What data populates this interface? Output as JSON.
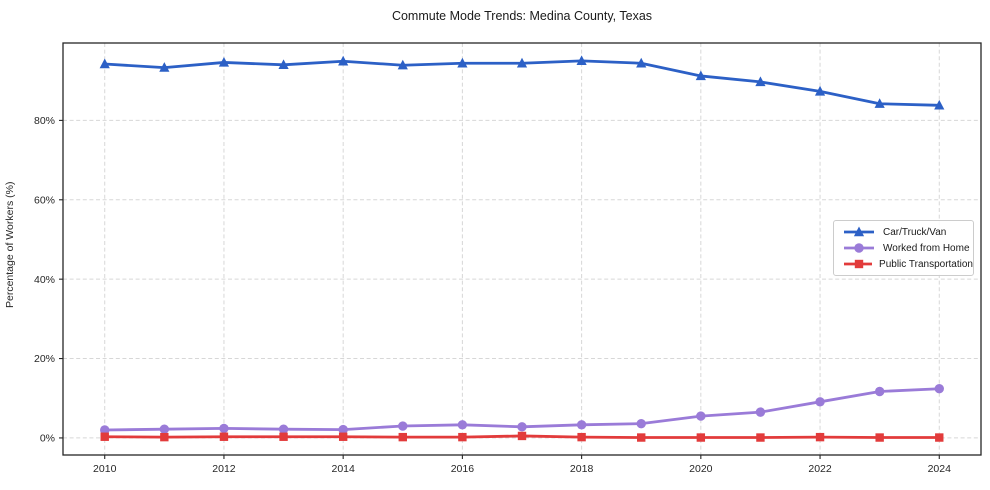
{
  "chart_data": {
    "type": "line",
    "title": "Commute Mode Trends: Medina County, Texas",
    "xlabel": "",
    "ylabel": "Percentage of Workers (%)",
    "x": [
      2010,
      2011,
      2012,
      2013,
      2014,
      2015,
      2016,
      2017,
      2018,
      2019,
      2020,
      2021,
      2022,
      2023,
      2024
    ],
    "series": [
      {
        "name": "Car/Truck/Van",
        "color": "#2c60c6",
        "marker": "triangle",
        "values": [
          94.2,
          93.3,
          94.6,
          94.0,
          94.9,
          93.9,
          94.4,
          94.4,
          95.0,
          94.4,
          91.2,
          89.7,
          87.3,
          84.2,
          83.8
        ]
      },
      {
        "name": "Worked from Home",
        "color": "#9a7bd8",
        "marker": "circle",
        "values": [
          2.0,
          2.2,
          2.4,
          2.2,
          2.1,
          3.0,
          3.3,
          2.8,
          3.3,
          3.6,
          5.5,
          6.5,
          9.1,
          11.7,
          12.4
        ]
      },
      {
        "name": "Public Transportation",
        "color": "#e23b3b",
        "marker": "square",
        "values": [
          0.3,
          0.2,
          0.3,
          0.3,
          0.3,
          0.2,
          0.2,
          0.5,
          0.2,
          0.1,
          0.1,
          0.1,
          0.2,
          0.1,
          0.1
        ]
      }
    ],
    "xticks": [
      2010,
      2012,
      2014,
      2016,
      2018,
      2020,
      2022,
      2024
    ],
    "yticks": [
      0,
      20,
      40,
      60,
      80
    ],
    "ytick_suffix": "%",
    "xlim": [
      2009.3,
      2024.7
    ],
    "ylim": [
      -4.3,
      99.5
    ],
    "grid": true,
    "grid_style": "dashed",
    "legend_position": "center-right"
  },
  "colors": {
    "background": "#ffffff",
    "grid": "#d7d7d7",
    "axis": "#262626",
    "tick_label": "#262626",
    "title": "#1a1a1a",
    "legend_border": "#cccccc"
  }
}
